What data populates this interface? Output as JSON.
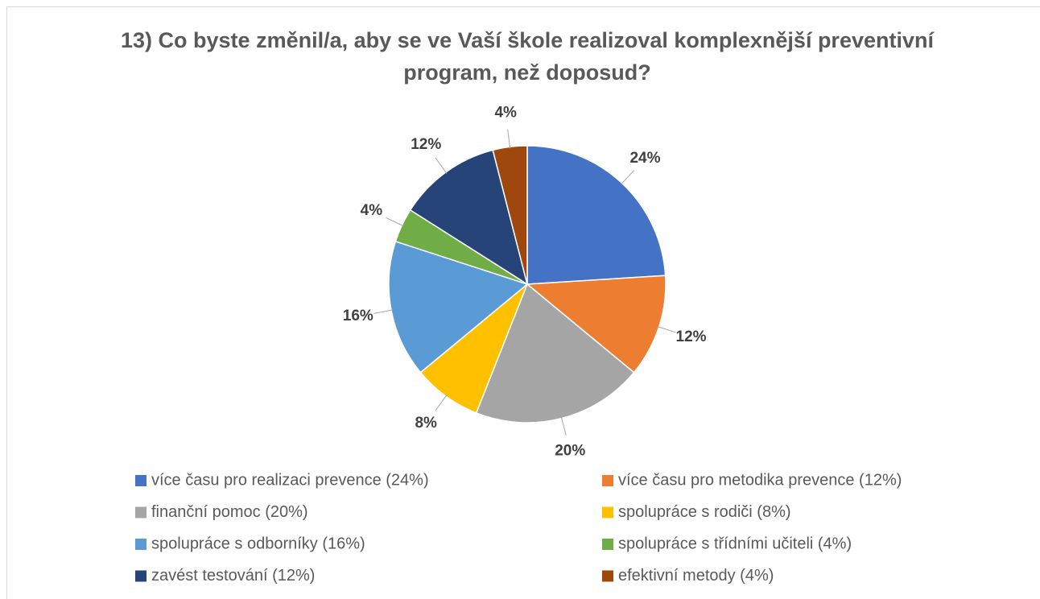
{
  "chart_data": {
    "type": "pie",
    "title": "13) Co byste změnil/a, aby se ve Vaší škole realizoval komplexnější preventivní program, než doposud?",
    "categories": [
      "více času pro realizaci prevence (24%)",
      "více času pro metodika prevence (12%)",
      "finanční pomoc (20%)",
      "spolupráce s rodiči (8%)",
      "spolupráce s odborníky (16%)",
      "spolupráce s třídními učiteli (4%)",
      "zavést testování (12%)",
      "efektivní metody (4%)"
    ],
    "values": [
      24,
      12,
      20,
      8,
      16,
      4,
      12,
      4
    ],
    "value_labels": [
      "24%",
      "12%",
      "20%",
      "8%",
      "16%",
      "4%",
      "12%",
      "4%"
    ],
    "colors": [
      "#4472c4",
      "#ed7d31",
      "#a5a5a5",
      "#ffc000",
      "#5b9bd5",
      "#70ad47",
      "#264478",
      "#9e480e"
    ],
    "legend": "bottom"
  }
}
